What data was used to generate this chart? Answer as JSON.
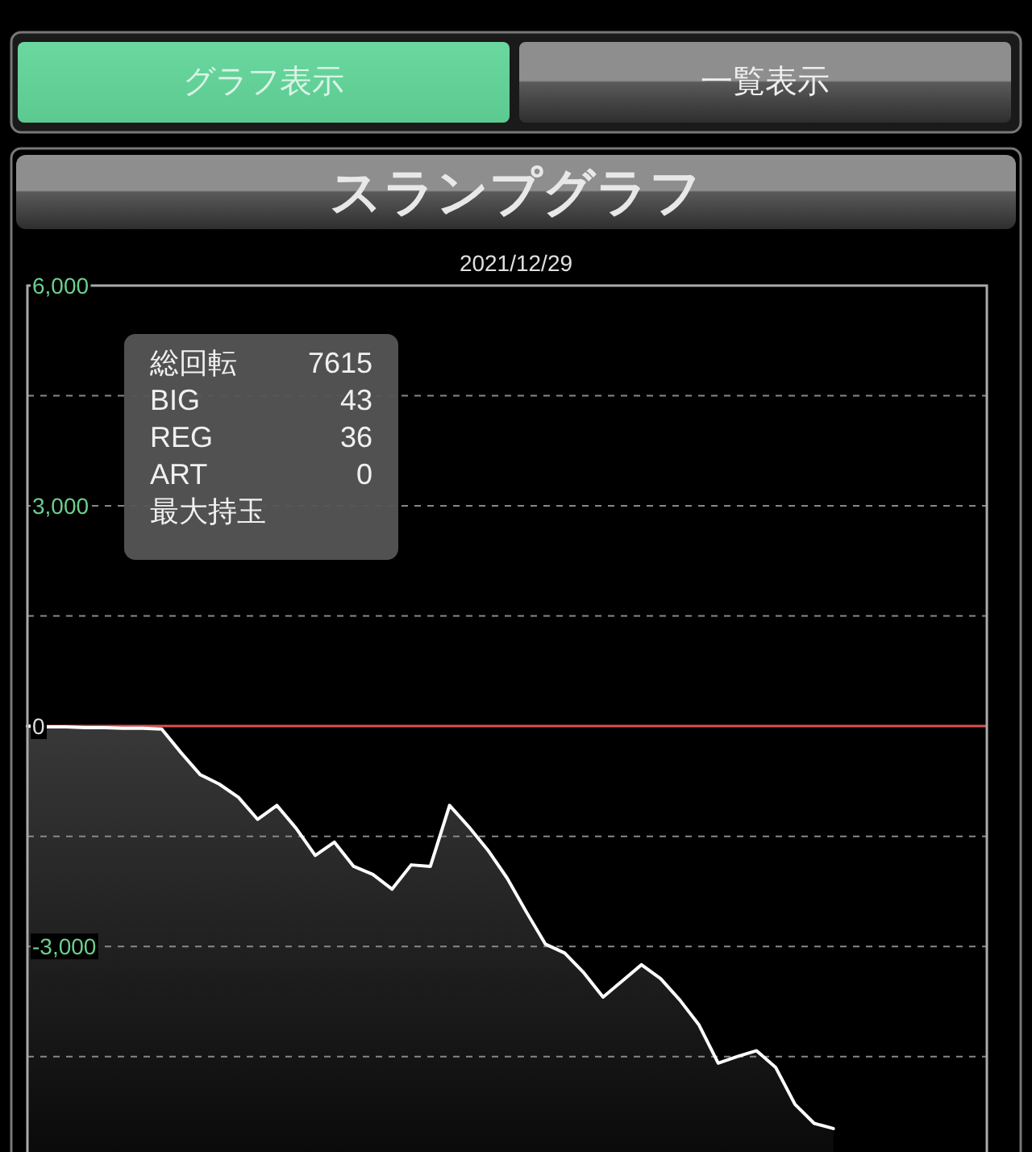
{
  "chart_data": [
    {
      "type": "other",
      "annotations": [
        "グラフ表示",
        "一覧表示"
      ]
    },
    {
      "type": "area",
      "title": "スランプグラフ",
      "subtitle": "2021/12/29",
      "categories": [
        null,
        null,
        null,
        null,
        null,
        null,
        null,
        null,
        null,
        null,
        null,
        null,
        null,
        null,
        null,
        null,
        null,
        null,
        null,
        null,
        null,
        null,
        null,
        null,
        null,
        null,
        null,
        null,
        null,
        null,
        null,
        null,
        null,
        null,
        null,
        null,
        null,
        null,
        null,
        null,
        null,
        null,
        null,
        null,
        null,
        null,
        null,
        null,
        null,
        null,
        null
      ],
      "series": [
        {
          "color": "#ffffff",
          "values": [
            0,
            -10,
            -10,
            -20,
            -20,
            -30,
            -30,
            -40,
            -360,
            -660,
            -790,
            -970,
            -1270,
            -1080,
            -1390,
            -1760,
            -1580,
            -1910,
            -2020,
            -2220,
            -1890,
            -1910,
            -1080,
            -1370,
            -1690,
            -2070,
            -2530,
            -2970,
            -3090,
            -3360,
            -3690,
            -3470,
            -3250,
            -3440,
            -3730,
            -4070,
            -4590,
            -4500,
            -4420,
            -4650,
            -5150,
            -5410,
            -5480,
            null,
            null,
            null,
            null,
            null,
            null,
            null,
            null
          ]
        }
      ],
      "ylim": [
        -5800,
        6000
      ],
      "yticks": [
        {
          "value": 6000,
          "label": "6,000"
        },
        {
          "value": 4500,
          "label": null
        },
        {
          "value": 3000,
          "label": "3,000"
        },
        {
          "value": 1500,
          "label": null
        },
        0,
        {
          "value": -1500,
          "label": null
        },
        {
          "value": -3000,
          "label": "-3,000"
        },
        {
          "value": -4500,
          "label": null
        }
      ],
      "tick_labels": "y",
      "grid": "y",
      "line_style": "solid",
      "marker": "none",
      "ref_lines": [
        {
          "axis": "y",
          "value": 0,
          "color": "#d9534f"
        }
      ],
      "annotations": [
        "総回転",
        "7615",
        "BIG",
        "43",
        "REG",
        "36",
        "ART",
        "0",
        "最大持玉"
      ]
    }
  ]
}
